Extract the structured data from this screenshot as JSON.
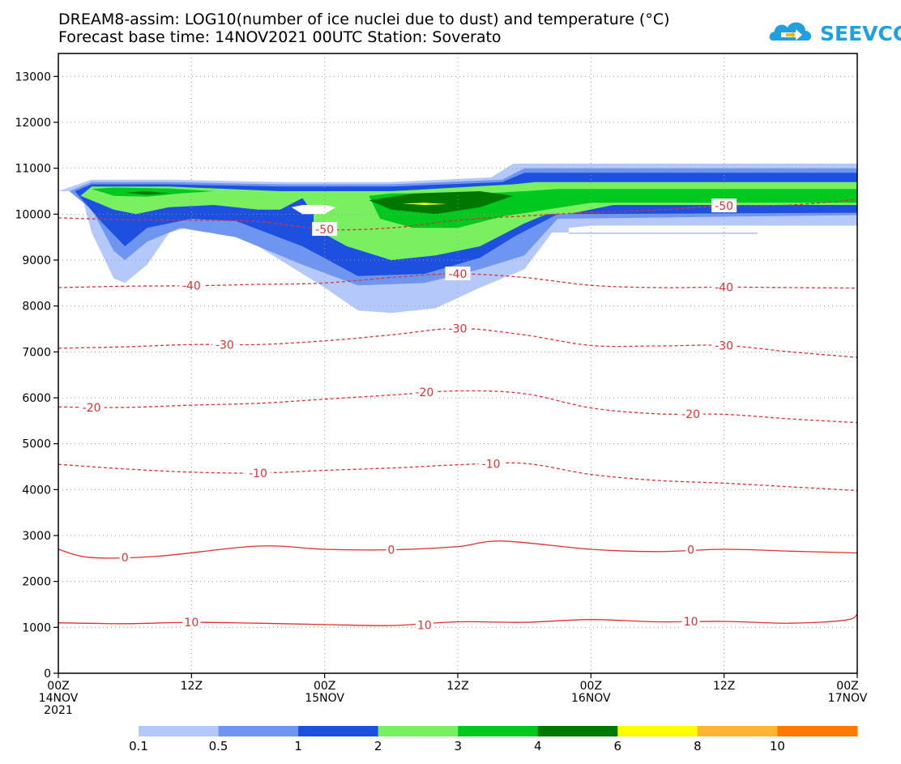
{
  "title": {
    "line1": "DREAM8-assim: LOG10(number of ice nuclei due to dust) and temperature (°C)",
    "line2": "Forecast base time: 14NOV2021 00UTC  Station: Soverato"
  },
  "logo": {
    "text": "SEEVCCC",
    "icon": "cloud-logo-icon",
    "colors": {
      "cloud": "#1fa0e0",
      "arrow": "#f5b400"
    }
  },
  "chart_data": {
    "type": "heatmap",
    "description_overlay": "filled contours of ice nuclei with temperature contour lines",
    "x_axis": {
      "unit": "hours since forecast base",
      "range": [
        0,
        72
      ],
      "ticks": [
        {
          "value": 0,
          "label": "00Z",
          "sublabel": "14NOV",
          "sublabel2": "2021"
        },
        {
          "value": 12,
          "label": "12Z"
        },
        {
          "value": 24,
          "label": "00Z",
          "sublabel": "15NOV"
        },
        {
          "value": 36,
          "label": "12Z"
        },
        {
          "value": 48,
          "label": "00Z",
          "sublabel": "16NOV"
        },
        {
          "value": 60,
          "label": "12Z"
        },
        {
          "value": 72,
          "label": "00Z",
          "sublabel": "17NOV"
        }
      ]
    },
    "y_axis": {
      "unit": "m",
      "range": [
        0,
        13500
      ],
      "ticks": [
        0,
        1000,
        2000,
        3000,
        4000,
        5000,
        6000,
        7000,
        8000,
        9000,
        10000,
        11000,
        12000,
        13000
      ]
    },
    "grid": true,
    "legend": {
      "placement": "bottom",
      "colors": [
        "#b4c8fa",
        "#6e96f0",
        "#1e50e0",
        "#78f060",
        "#00c81e",
        "#007800",
        "#ffff00",
        "#ffb432",
        "#ff7800"
      ],
      "labels": [
        "0.1",
        "0.5",
        "1",
        "2",
        "3",
        "4",
        "6",
        "8",
        "10"
      ]
    },
    "temperature_contours": [
      {
        "value": 10,
        "label": "10",
        "dashed": false,
        "points": [
          [
            0,
            1100
          ],
          [
            6,
            1080
          ],
          [
            12,
            1110
          ],
          [
            18,
            1090
          ],
          [
            24,
            1060
          ],
          [
            30,
            1040
          ],
          [
            36,
            1120
          ],
          [
            42,
            1110
          ],
          [
            48,
            1170
          ],
          [
            54,
            1120
          ],
          [
            60,
            1130
          ],
          [
            66,
            1090
          ],
          [
            71,
            1160
          ],
          [
            72,
            1290
          ]
        ]
      },
      {
        "value": 0,
        "label": "0",
        "dashed": false,
        "points": [
          [
            0,
            2700
          ],
          [
            3,
            2520
          ],
          [
            9,
            2550
          ],
          [
            18,
            2770
          ],
          [
            24,
            2700
          ],
          [
            30,
            2690
          ],
          [
            36,
            2760
          ],
          [
            40,
            2880
          ],
          [
            48,
            2700
          ],
          [
            54,
            2650
          ],
          [
            60,
            2700
          ],
          [
            66,
            2660
          ],
          [
            72,
            2620
          ]
        ]
      },
      {
        "value": -10,
        "label": "-10",
        "dashed": true,
        "points": [
          [
            0,
            4550
          ],
          [
            6,
            4450
          ],
          [
            12,
            4380
          ],
          [
            18,
            4360
          ],
          [
            24,
            4420
          ],
          [
            30,
            4470
          ],
          [
            36,
            4540
          ],
          [
            42,
            4570
          ],
          [
            48,
            4330
          ],
          [
            54,
            4200
          ],
          [
            60,
            4140
          ],
          [
            66,
            4060
          ],
          [
            72,
            3980
          ]
        ]
      },
      {
        "value": -20,
        "label": "-20",
        "dashed": true,
        "points": [
          [
            0,
            5800
          ],
          [
            6,
            5790
          ],
          [
            12,
            5840
          ],
          [
            18,
            5880
          ],
          [
            24,
            5970
          ],
          [
            30,
            6060
          ],
          [
            36,
            6150
          ],
          [
            42,
            6090
          ],
          [
            48,
            5780
          ],
          [
            54,
            5650
          ],
          [
            60,
            5640
          ],
          [
            66,
            5540
          ],
          [
            72,
            5460
          ]
        ]
      },
      {
        "value": -30,
        "label": "-30",
        "dashed": true,
        "points": [
          [
            0,
            7080
          ],
          [
            6,
            7110
          ],
          [
            12,
            7160
          ],
          [
            18,
            7160
          ],
          [
            24,
            7240
          ],
          [
            30,
            7370
          ],
          [
            36,
            7510
          ],
          [
            42,
            7370
          ],
          [
            48,
            7140
          ],
          [
            54,
            7130
          ],
          [
            60,
            7140
          ],
          [
            66,
            7000
          ],
          [
            72,
            6880
          ]
        ]
      },
      {
        "value": -40,
        "label": "-40",
        "dashed": true,
        "points": [
          [
            0,
            8400
          ],
          [
            6,
            8430
          ],
          [
            12,
            8440
          ],
          [
            18,
            8470
          ],
          [
            24,
            8500
          ],
          [
            30,
            8620
          ],
          [
            36,
            8700
          ],
          [
            42,
            8620
          ],
          [
            48,
            8450
          ],
          [
            54,
            8400
          ],
          [
            60,
            8410
          ],
          [
            66,
            8400
          ],
          [
            72,
            8390
          ]
        ]
      },
      {
        "value": -50,
        "label": "-50",
        "dashed": true,
        "points": [
          [
            0,
            9920
          ],
          [
            6,
            9880
          ],
          [
            12,
            9870
          ],
          [
            18,
            9840
          ],
          [
            24,
            9670
          ],
          [
            30,
            9700
          ],
          [
            36,
            9870
          ],
          [
            42,
            9960
          ],
          [
            48,
            10040
          ],
          [
            54,
            10090
          ],
          [
            60,
            10180
          ],
          [
            66,
            10200
          ],
          [
            72,
            10320
          ]
        ]
      }
    ],
    "contour_labels": [
      {
        "value": "10",
        "at": [
          12,
          1110
        ]
      },
      {
        "value": "10",
        "at": [
          33,
          1050
        ]
      },
      {
        "value": "10",
        "at": [
          57,
          1130
        ]
      },
      {
        "value": "0",
        "at": [
          6,
          2520
        ]
      },
      {
        "value": "0",
        "at": [
          30,
          2690
        ]
      },
      {
        "value": "0",
        "at": [
          57,
          2690
        ]
      },
      {
        "value": "-10",
        "at": [
          18,
          4360
        ]
      },
      {
        "value": "-10",
        "at": [
          39,
          4560
        ]
      },
      {
        "value": "-20",
        "at": [
          3,
          5790
        ]
      },
      {
        "value": "-20",
        "at": [
          33,
          6120
        ]
      },
      {
        "value": "-20",
        "at": [
          57,
          5650
        ]
      },
      {
        "value": "-30",
        "at": [
          15,
          7160
        ]
      },
      {
        "value": "-30",
        "at": [
          36,
          7510
        ]
      },
      {
        "value": "-30",
        "at": [
          60,
          7140
        ]
      },
      {
        "value": "-40",
        "at": [
          12,
          8440
        ]
      },
      {
        "value": "-40",
        "at": [
          36,
          8700
        ]
      },
      {
        "value": "-40",
        "at": [
          60,
          8410
        ]
      },
      {
        "value": "-50",
        "at": [
          24,
          9670
        ]
      },
      {
        "value": "-50",
        "at": [
          60,
          10180
        ]
      }
    ],
    "ice_nuclei_regions": [
      {
        "level": 0.1,
        "polygon": [
          [
            0,
            10500
          ],
          [
            2,
            10500
          ],
          [
            3,
            9600
          ],
          [
            5,
            8600
          ],
          [
            6,
            8500
          ],
          [
            8,
            8900
          ],
          [
            10,
            9600
          ],
          [
            13,
            9800
          ],
          [
            18,
            9300
          ],
          [
            24,
            8400
          ],
          [
            27,
            7900
          ],
          [
            30,
            7850
          ],
          [
            34,
            7950
          ],
          [
            38,
            8400
          ],
          [
            42,
            8800
          ],
          [
            44.5,
            9600
          ],
          [
            46,
            9600
          ],
          [
            63,
            9600
          ],
          [
            63,
            9570
          ],
          [
            46,
            9570
          ],
          [
            46,
            9700
          ],
          [
            48,
            9750
          ],
          [
            52,
            9750
          ],
          [
            72,
            9750
          ],
          [
            72,
            11100
          ],
          [
            41,
            11100
          ],
          [
            39,
            10800
          ],
          [
            30,
            10700
          ],
          [
            20,
            10700
          ],
          [
            10,
            10750
          ],
          [
            3,
            10750
          ],
          [
            0,
            10500
          ]
        ]
      },
      {
        "level": 0.5,
        "polygon": [
          [
            1,
            10500
          ],
          [
            3,
            10100
          ],
          [
            5,
            9200
          ],
          [
            6,
            9000
          ],
          [
            8,
            9400
          ],
          [
            11,
            9700
          ],
          [
            16,
            9500
          ],
          [
            22,
            8900
          ],
          [
            27,
            8450
          ],
          [
            33,
            8500
          ],
          [
            38,
            8800
          ],
          [
            42,
            9100
          ],
          [
            45,
            9900
          ],
          [
            72,
            9980
          ],
          [
            72,
            11000
          ],
          [
            42,
            11000
          ],
          [
            40,
            10750
          ],
          [
            30,
            10650
          ],
          [
            20,
            10650
          ],
          [
            10,
            10700
          ],
          [
            3,
            10700
          ],
          [
            1,
            10500
          ]
        ]
      },
      {
        "level": 1,
        "polygon": [
          [
            1.5,
            10500
          ],
          [
            4,
            9800
          ],
          [
            6,
            9300
          ],
          [
            8,
            9700
          ],
          [
            12,
            9900
          ],
          [
            16,
            9850
          ],
          [
            22,
            9300
          ],
          [
            27,
            8650
          ],
          [
            33,
            8700
          ],
          [
            38,
            9050
          ],
          [
            41,
            9500
          ],
          [
            45,
            10000
          ],
          [
            72,
            10030
          ],
          [
            72,
            10900
          ],
          [
            42,
            10900
          ],
          [
            40,
            10700
          ],
          [
            30,
            10600
          ],
          [
            20,
            10600
          ],
          [
            10,
            10650
          ],
          [
            3,
            10650
          ],
          [
            1.5,
            10500
          ]
        ]
      },
      {
        "level": 2,
        "polygon": [
          [
            2,
            10400
          ],
          [
            5,
            10100
          ],
          [
            7,
            10000
          ],
          [
            10,
            10150
          ],
          [
            14,
            10200
          ],
          [
            18,
            10100
          ],
          [
            20,
            10100
          ],
          [
            22,
            10350
          ],
          [
            23,
            10000
          ],
          [
            23,
            9700
          ],
          [
            26,
            9300
          ],
          [
            30,
            9000
          ],
          [
            34,
            9100
          ],
          [
            38,
            9300
          ],
          [
            42,
            9800
          ],
          [
            44,
            10000
          ],
          [
            46,
            10000
          ],
          [
            50,
            10200
          ],
          [
            72,
            10200
          ],
          [
            72,
            10700
          ],
          [
            43,
            10700
          ],
          [
            41,
            10650
          ],
          [
            30,
            10500
          ],
          [
            20,
            10500
          ],
          [
            10,
            10600
          ],
          [
            3,
            10600
          ],
          [
            2,
            10400
          ]
        ]
      },
      {
        "level": 3,
        "polygon": [
          [
            28,
            10400
          ],
          [
            29,
            9900
          ],
          [
            32,
            9700
          ],
          [
            36,
            9700
          ],
          [
            40,
            9950
          ],
          [
            44,
            10100
          ],
          [
            48,
            10250
          ],
          [
            72,
            10250
          ],
          [
            72,
            10550
          ],
          [
            45,
            10550
          ],
          [
            42,
            10500
          ],
          [
            38,
            10450
          ],
          [
            30,
            10450
          ],
          [
            28,
            10400
          ]
        ]
      },
      {
        "level": 3,
        "polygon": [
          [
            3,
            10550
          ],
          [
            5,
            10400
          ],
          [
            8,
            10380
          ],
          [
            11,
            10450
          ],
          [
            14,
            10500
          ],
          [
            10,
            10560
          ],
          [
            5,
            10580
          ],
          [
            3,
            10550
          ]
        ]
      },
      {
        "level": 4,
        "polygon": [
          [
            28,
            10300
          ],
          [
            30,
            10100
          ],
          [
            34,
            10000
          ],
          [
            38,
            10150
          ],
          [
            41,
            10400
          ],
          [
            38,
            10500
          ],
          [
            32,
            10450
          ],
          [
            28,
            10300
          ]
        ]
      },
      {
        "level": 4,
        "polygon": [
          [
            6,
            10470
          ],
          [
            8,
            10420
          ],
          [
            10,
            10450
          ],
          [
            8,
            10500
          ],
          [
            6,
            10470
          ]
        ]
      },
      {
        "level": 6,
        "polygon": [
          [
            31,
            10230
          ],
          [
            33,
            10200
          ],
          [
            35,
            10220
          ],
          [
            33,
            10250
          ],
          [
            31,
            10230
          ]
        ]
      }
    ],
    "white_holes": [
      {
        "polygon": [
          [
            21,
            10150
          ],
          [
            22,
            10000
          ],
          [
            24,
            10000
          ],
          [
            25,
            10150
          ],
          [
            24,
            10200
          ],
          [
            22,
            10200
          ],
          [
            21,
            10150
          ]
        ]
      }
    ]
  }
}
